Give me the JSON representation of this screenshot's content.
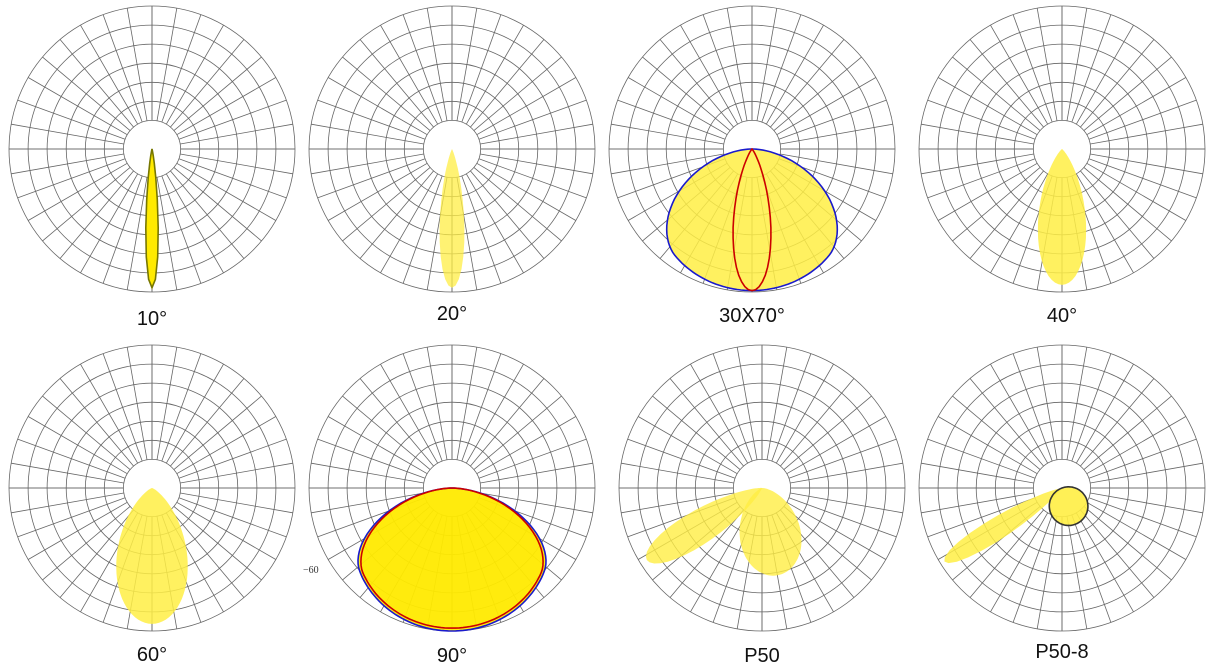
{
  "panels": [
    {
      "label": "10°",
      "beams": [
        {
          "shape": "teardrop",
          "fill": "#ffea00",
          "fill_opacity": 1.0,
          "angle": 0,
          "reach": 0.97,
          "half_angle_deg": 5,
          "stroke": "#777700"
        }
      ]
    },
    {
      "label": "20°",
      "beams": [
        {
          "shape": "teardrop",
          "fill": "#ffee44",
          "fill_opacity": 0.75,
          "angle": 0,
          "reach": 0.97,
          "half_angle_deg": 10
        }
      ]
    },
    {
      "label": "30X70°",
      "beams": [
        {
          "shape": "bulb",
          "fill": "#ffee44",
          "fill_opacity": 0.85,
          "angle": 0,
          "reach": 0.99,
          "wide_deg": 35,
          "stroke": "#1a1acc"
        },
        {
          "shape": "teardrop",
          "fill": "none",
          "fill_opacity": 0,
          "angle": 0,
          "reach": 0.99,
          "half_angle_deg": 15,
          "stroke": "#cc0000"
        }
      ]
    },
    {
      "label": "40°",
      "beams": [
        {
          "shape": "teardrop",
          "fill": "#ffee44",
          "fill_opacity": 0.85,
          "angle": 0,
          "reach": 0.95,
          "half_angle_deg": 20
        }
      ]
    },
    {
      "label": "60°",
      "beams": [
        {
          "shape": "teardrop",
          "fill": "#ffee44",
          "fill_opacity": 0.85,
          "angle": 0,
          "reach": 0.95,
          "half_angle_deg": 30
        }
      ]
    },
    {
      "label": "90°",
      "beams": [
        {
          "shape": "bulb",
          "fill": "#ffea00",
          "fill_opacity": 0.95,
          "angle": 0,
          "reach": 1.0,
          "wide_deg": 48,
          "stroke": "#1a1acc"
        },
        {
          "shape": "bulb",
          "fill": "none",
          "fill_opacity": 0,
          "angle": 0,
          "reach": 0.98,
          "wide_deg": 46,
          "stroke": "#cc0000"
        }
      ]
    },
    {
      "label": "P50",
      "beams": [
        {
          "shape": "teardrop",
          "fill": "#ffee44",
          "fill_opacity": 0.8,
          "angle": 58,
          "reach": 0.95,
          "half_angle_deg": 14
        },
        {
          "shape": "teardrop",
          "fill": "#ffee44",
          "fill_opacity": 0.8,
          "angle": -10,
          "reach": 0.62,
          "half_angle_deg": 40
        }
      ]
    },
    {
      "label": "P50-8",
      "beams": [
        {
          "shape": "teardrop",
          "fill": "#ffee44",
          "fill_opacity": 0.85,
          "angle": 58,
          "reach": 0.97,
          "half_angle_deg": 9
        },
        {
          "shape": "teardrop",
          "fill": "#ffee44",
          "fill_opacity": 0.9,
          "angle": -20,
          "reach": 0.27,
          "half_angle_deg": 60,
          "stroke": "#333333"
        }
      ]
    }
  ],
  "stray_text": "−60",
  "grid": {
    "rings": 6,
    "inner_ring": 0.2,
    "spokes_deg": 10,
    "line_color": "#666666"
  }
}
